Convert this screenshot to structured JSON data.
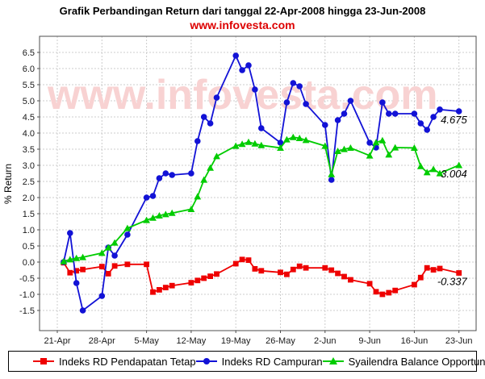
{
  "title": "Grafik Perbandingan Return dari tanggal 22-Apr-2008 hingga 23-Jun-2008",
  "subtitle": "www.infovesta.com",
  "watermark": "www.infovesta.com",
  "colors": {
    "title": "#000000",
    "subtitle_red": "#dd0000",
    "watermark_pink": "#f8d2d2",
    "grid": "#cccccc",
    "plot_border": "#4d4d4d",
    "tick_text": "#1a1a1a",
    "series_red": "#ee0000",
    "series_blue": "#1212d6",
    "series_green": "#00cc00"
  },
  "legend": {
    "items": [
      {
        "label": "Indeks RD Pendapatan Tetap",
        "marker": "square",
        "color": "#ee0000"
      },
      {
        "label": "Indeks RD Campuran",
        "marker": "circle",
        "color": "#1212d6"
      },
      {
        "label": "Syailendra Balance Opportunity Fund",
        "marker": "triangle",
        "color": "#00cc00"
      }
    ]
  },
  "chart_data": {
    "type": "line",
    "title": "Grafik Perbandingan Return dari tanggal 22-Apr-2008 hingga 23-Jun-2008",
    "subtitle": "www.infovesta.com",
    "xlabel": "",
    "ylabel": "% Return",
    "ylim": [
      -1.5,
      6.5
    ],
    "y_tick_step": 0.5,
    "grid": true,
    "legend_position": "bottom",
    "x_ticks": [
      {
        "label": "21-Apr",
        "day": 0
      },
      {
        "label": "28-Apr",
        "day": 7
      },
      {
        "label": "5-May",
        "day": 14
      },
      {
        "label": "12-May",
        "day": 21
      },
      {
        "label": "19-May",
        "day": 28
      },
      {
        "label": "26-May",
        "day": 35
      },
      {
        "label": "2-Jun",
        "day": 42
      },
      {
        "label": "9-Jun",
        "day": 49
      },
      {
        "label": "16-Jun",
        "day": 56
      },
      {
        "label": "23-Jun",
        "day": 63
      }
    ],
    "x": [
      "22-Apr",
      "23-Apr",
      "24-Apr",
      "25-Apr",
      "28-Apr",
      "29-Apr",
      "30-Apr",
      "2-May",
      "5-May",
      "6-May",
      "7-May",
      "8-May",
      "9-May",
      "12-May",
      "13-May",
      "14-May",
      "15-May",
      "16-May",
      "19-May",
      "20-May",
      "21-May",
      "22-May",
      "23-May",
      "26-May",
      "27-May",
      "28-May",
      "29-May",
      "30-May",
      "2-Jun",
      "3-Jun",
      "4-Jun",
      "5-Jun",
      "6-Jun",
      "9-Jun",
      "10-Jun",
      "11-Jun",
      "12-Jun",
      "13-Jun",
      "16-Jun",
      "17-Jun",
      "18-Jun",
      "19-Jun",
      "20-Jun",
      "23-Jun"
    ],
    "day_offsets": [
      1,
      2,
      3,
      4,
      7,
      8,
      9,
      11,
      14,
      15,
      16,
      17,
      18,
      21,
      22,
      23,
      24,
      25,
      28,
      29,
      30,
      31,
      32,
      35,
      36,
      37,
      38,
      39,
      42,
      43,
      44,
      45,
      46,
      49,
      50,
      51,
      52,
      53,
      56,
      57,
      58,
      59,
      60,
      63
    ],
    "series": [
      {
        "name": "Indeks RD Pendapatan Tetap",
        "color": "#ee0000",
        "marker": "square",
        "end_label": "-0.337",
        "values": [
          -0.02,
          -0.33,
          -0.27,
          -0.23,
          -0.14,
          -0.36,
          -0.12,
          -0.07,
          -0.07,
          -0.93,
          -0.86,
          -0.79,
          -0.73,
          -0.64,
          -0.57,
          -0.5,
          -0.44,
          -0.37,
          -0.05,
          0.08,
          0.06,
          -0.21,
          -0.27,
          -0.32,
          -0.38,
          -0.23,
          -0.13,
          -0.18,
          -0.18,
          -0.25,
          -0.35,
          -0.45,
          -0.55,
          -0.67,
          -0.92,
          -1.0,
          -0.95,
          -0.88,
          -0.7,
          -0.48,
          -0.18,
          -0.24,
          -0.2,
          -0.337
        ]
      },
      {
        "name": "Indeks RD Campuran",
        "color": "#1212d6",
        "marker": "circle",
        "end_label": "4.675",
        "values": [
          0.0,
          0.9,
          -0.65,
          -1.5,
          -1.05,
          0.45,
          0.2,
          0.85,
          2.0,
          2.05,
          2.6,
          2.75,
          2.7,
          2.75,
          3.75,
          4.5,
          4.3,
          5.1,
          6.4,
          5.95,
          6.1,
          5.35,
          4.15,
          3.7,
          4.95,
          5.55,
          5.45,
          4.9,
          4.25,
          2.55,
          4.4,
          4.6,
          5.0,
          3.7,
          3.55,
          4.95,
          4.6,
          4.6,
          4.6,
          4.3,
          4.1,
          4.5,
          4.73,
          4.675
        ]
      },
      {
        "name": "Syailendra Balance Opportunity Fund",
        "color": "#00cc00",
        "marker": "triangle",
        "end_label": "3.004",
        "values": [
          0.02,
          0.08,
          0.12,
          0.15,
          0.28,
          0.45,
          0.6,
          1.05,
          1.3,
          1.37,
          1.44,
          1.48,
          1.52,
          1.64,
          2.03,
          2.55,
          2.92,
          3.28,
          3.6,
          3.66,
          3.72,
          3.67,
          3.62,
          3.54,
          3.8,
          3.87,
          3.84,
          3.78,
          3.6,
          2.72,
          3.44,
          3.5,
          3.54,
          3.3,
          3.71,
          3.77,
          3.33,
          3.55,
          3.54,
          2.97,
          2.78,
          2.88,
          2.75,
          3.004
        ]
      }
    ]
  }
}
